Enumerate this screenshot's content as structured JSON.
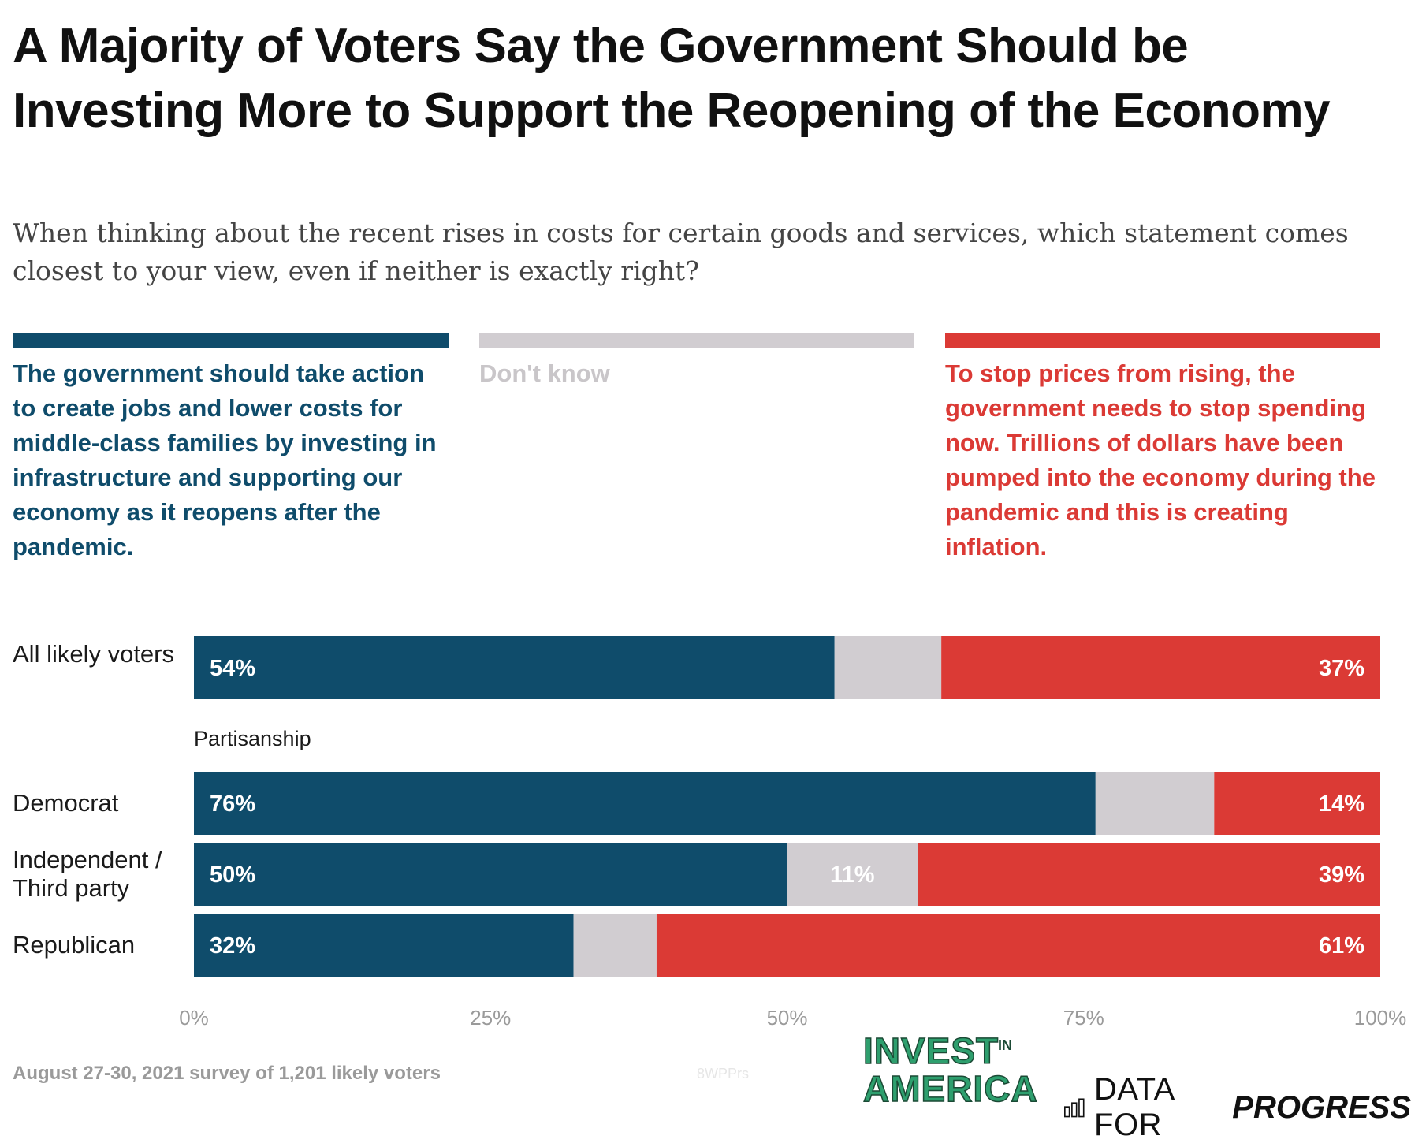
{
  "title": "A Majority of Voters Say the Government Should be Investing More to Support the Reopening of the Economy",
  "subtitle": "When thinking about the recent rises in costs for certain goods and services, which statement comes closest to your view, even if neither is exactly right?",
  "legend": [
    {
      "label": "The government should take action to create jobs and lower costs for middle-class families by investing in infrastructure and supporting our economy as it reopens after the pandemic.",
      "color": "#0f4c6b",
      "text_color": "#0f4c6b"
    },
    {
      "label": "Don't know",
      "color": "#d1cdd1",
      "text_color": "#c9c6c9"
    },
    {
      "label": "To stop prices from rising, the government needs to stop spending now. Trillions of dollars have been pumped into the economy during the pandemic and this is creating inflation.",
      "color": "#db3a35",
      "text_color": "#db3a35"
    }
  ],
  "section_label": "Partisanship",
  "chart_data": {
    "type": "bar",
    "orientation": "horizontal",
    "stacked": true,
    "categories": [
      "All likely voters",
      "Democrat",
      "Independent / Third party",
      "Republican"
    ],
    "series": [
      {
        "name": "The government should take action to create jobs and lower costs for middle-class families by investing in infrastructure and supporting our economy as it reopens after the pandemic.",
        "values": [
          54,
          76,
          50,
          32
        ],
        "labels": [
          "54%",
          "76%",
          "50%",
          "32%"
        ]
      },
      {
        "name": "Don't know",
        "values": [
          9,
          10,
          11,
          7
        ],
        "labels": [
          "",
          "",
          "11%",
          ""
        ]
      },
      {
        "name": "To stop prices from rising, the government needs to stop spending now. Trillions of dollars have been pumped into the economy during the pandemic and this is creating inflation.",
        "values": [
          37,
          14,
          39,
          61
        ],
        "labels": [
          "37%",
          "14%",
          "39%",
          "61%"
        ]
      }
    ],
    "xlim": [
      0,
      100
    ],
    "xticks": [
      "0%",
      "25%",
      "50%",
      "75%",
      "100%"
    ],
    "colors": [
      "#0f4c6b",
      "#d1cdd1",
      "#db3a35"
    ]
  },
  "footer": {
    "note": "August 27-30, 2021 survey of 1,201 likely voters",
    "watermark": "8WPPrs",
    "logo_invest": "INVEST",
    "logo_in": "IN",
    "logo_america": "AMERICA",
    "logo_dfp_1": "DATA FOR",
    "logo_dfp_2": "PROGRESS"
  }
}
